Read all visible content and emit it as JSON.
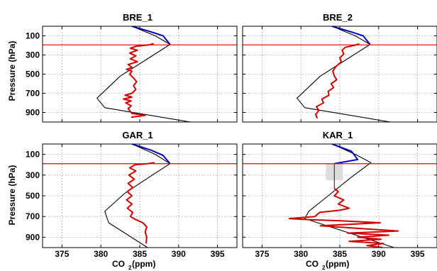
{
  "figure": {
    "ylabel": "Pressure (hPa)",
    "xlabel_main": "CO",
    "xlabel_sub": "2",
    "xlabel_unit": " (ppm)"
  },
  "chart_data": [
    {
      "type": "line",
      "title": "BRE_1",
      "xlim": [
        372.5,
        397.5
      ],
      "ylim": [
        1000,
        0
      ],
      "xticks": [
        375,
        380,
        385,
        390,
        395
      ],
      "yticks": [
        100,
        300,
        500,
        700,
        900
      ],
      "show_xticklabels": false,
      "show_yticklabels": true,
      "grid": true,
      "hline": {
        "y": 195,
        "color": "#e00000"
      },
      "series": [
        {
          "role": "model_envelope",
          "color": "#000000",
          "points": [
            [
              384,
              0
            ],
            [
              387,
              100
            ],
            [
              388.9,
              190
            ],
            [
              386,
              340
            ],
            [
              382.5,
              520
            ],
            [
              379.5,
              750
            ],
            [
              380.5,
              850
            ],
            [
              391.5,
              1000
            ]
          ]
        },
        {
          "role": "model_upper",
          "color": "#0000c0",
          "points": [
            [
              384,
              0
            ],
            [
              386.5,
              60
            ],
            [
              388,
              100
            ],
            [
              388.9,
              190
            ]
          ]
        },
        {
          "role": "observed",
          "color": "#d00000",
          "points": [
            [
              386.8,
              180
            ],
            [
              386.2,
              195
            ],
            [
              384.5,
              210
            ],
            [
              383.8,
              230
            ],
            [
              384.7,
              250
            ],
            [
              383.7,
              280
            ],
            [
              384.5,
              310
            ],
            [
              383.8,
              340
            ],
            [
              384.7,
              370
            ],
            [
              383.5,
              400
            ],
            [
              384,
              430
            ],
            [
              383.3,
              450
            ],
            [
              384,
              470
            ],
            [
              383.7,
              500
            ],
            [
              384.2,
              540
            ],
            [
              384.6,
              580
            ],
            [
              384.2,
              620
            ],
            [
              384.5,
              660
            ],
            [
              384,
              700
            ],
            [
              383.1,
              720
            ],
            [
              384,
              740
            ],
            [
              382.9,
              760
            ],
            [
              383.9,
              780
            ],
            [
              383.2,
              800
            ],
            [
              383.9,
              830
            ],
            [
              383.5,
              860
            ],
            [
              383.8,
              890
            ],
            [
              384,
              910
            ],
            [
              385.7,
              930
            ],
            [
              383.9,
              950
            ]
          ]
        }
      ]
    },
    {
      "type": "line",
      "title": "BRE_2",
      "xlim": [
        372.5,
        397.5
      ],
      "ylim": [
        1000,
        0
      ],
      "xticks": [
        375,
        380,
        385,
        390,
        395
      ],
      "yticks": [
        100,
        300,
        500,
        700,
        900
      ],
      "show_xticklabels": false,
      "show_yticklabels": false,
      "grid": true,
      "hline": {
        "y": 195,
        "color": "#e00000"
      },
      "series": [
        {
          "role": "model_envelope",
          "color": "#000000",
          "points": [
            [
              384,
              0
            ],
            [
              387,
              100
            ],
            [
              388.9,
              190
            ],
            [
              386,
              340
            ],
            [
              382.5,
              520
            ],
            [
              379.5,
              750
            ],
            [
              380.5,
              850
            ],
            [
              391.5,
              1000
            ]
          ]
        },
        {
          "role": "model_upper",
          "color": "#0000c0",
          "points": [
            [
              384,
              0
            ],
            [
              386.5,
              60
            ],
            [
              388,
              100
            ],
            [
              388.9,
              190
            ]
          ]
        },
        {
          "role": "observed",
          "color": "#d00000",
          "points": [
            [
              387.5,
              185
            ],
            [
              386.8,
              200
            ],
            [
              385.7,
              220
            ],
            [
              385.3,
              250
            ],
            [
              385.5,
              290
            ],
            [
              385,
              330
            ],
            [
              385.2,
              370
            ],
            [
              384.5,
              420
            ],
            [
              384.1,
              470
            ],
            [
              384.3,
              520
            ],
            [
              384.6,
              560
            ],
            [
              383.9,
              600
            ],
            [
              384.2,
              640
            ],
            [
              383.5,
              680
            ],
            [
              383.6,
              720
            ],
            [
              382.7,
              760
            ],
            [
              382.9,
              800
            ],
            [
              382,
              840
            ],
            [
              382.3,
              880
            ],
            [
              381.9,
              920
            ],
            [
              382.1,
              960
            ]
          ]
        }
      ]
    },
    {
      "type": "line",
      "title": "GAR_1",
      "xlim": [
        372.5,
        397.5
      ],
      "ylim": [
        1000,
        0
      ],
      "xticks": [
        375,
        380,
        385,
        390,
        395
      ],
      "yticks": [
        100,
        300,
        500,
        700,
        900
      ],
      "show_xticklabels": true,
      "show_yticklabels": true,
      "grid": true,
      "hline": {
        "y": 190,
        "color": "#e00000"
      },
      "series": [
        {
          "role": "model_envelope",
          "color": "#000000",
          "points": [
            [
              384,
              0
            ],
            [
              387,
              100
            ],
            [
              388.9,
              190
            ],
            [
              386,
              330
            ],
            [
              383,
              480
            ],
            [
              380.5,
              650
            ],
            [
              381,
              760
            ],
            [
              386,
              1000
            ]
          ]
        },
        {
          "role": "model_upper",
          "color": "#0000c0",
          "points": [
            [
              384,
              0
            ],
            [
              386.5,
              60
            ],
            [
              388,
              110
            ],
            [
              388.9,
              190
            ]
          ]
        },
        {
          "role": "observed",
          "color": "#d00000",
          "points": [
            [
              386.9,
              180
            ],
            [
              386,
              190
            ],
            [
              384.4,
              200
            ],
            [
              383.7,
              230
            ],
            [
              384.5,
              260
            ],
            [
              383.6,
              300
            ],
            [
              384.3,
              340
            ],
            [
              383.5,
              380
            ],
            [
              384.1,
              420
            ],
            [
              383.4,
              460
            ],
            [
              384,
              500
            ],
            [
              383.3,
              540
            ],
            [
              384,
              580
            ],
            [
              383.4,
              620
            ],
            [
              384.1,
              660
            ],
            [
              383.8,
              700
            ],
            [
              384.5,
              730
            ],
            [
              385.4,
              760
            ],
            [
              385.9,
              800
            ],
            [
              385.7,
              850
            ],
            [
              385.9,
              900
            ],
            [
              385.8,
              960
            ]
          ]
        }
      ]
    },
    {
      "type": "line",
      "title": "KAR_1",
      "xlim": [
        372.5,
        397.5
      ],
      "ylim": [
        1000,
        0
      ],
      "xticks": [
        375,
        380,
        385,
        390,
        395
      ],
      "yticks": [
        100,
        300,
        500,
        700,
        900
      ],
      "show_xticklabels": true,
      "show_yticklabels": false,
      "grid": true,
      "hline": {
        "y": 190,
        "color": "#e00000"
      },
      "shaded_band": {
        "x": [
          383.2,
          385.4
        ],
        "y": [
          190,
          350
        ],
        "color": "#dddddd"
      },
      "series": [
        {
          "role": "model_envelope",
          "color": "#000000",
          "points": [
            [
              384,
              0
            ],
            [
              387,
              100
            ],
            [
              389,
              180
            ],
            [
              386.5,
              320
            ],
            [
              383.5,
              500
            ],
            [
              381,
              650
            ],
            [
              380.5,
              720
            ],
            [
              392,
              1000
            ]
          ]
        },
        {
          "role": "model_upper",
          "color": "#0000c0",
          "points": [
            [
              384,
              0
            ],
            [
              386.5,
              70
            ],
            [
              387.3,
              150
            ],
            [
              384.3,
              190
            ]
          ]
        },
        {
          "role": "observed_upper",
          "color": "#333333",
          "points": [
            [
              384.3,
              190
            ],
            [
              384.3,
              430
            ]
          ]
        },
        {
          "role": "observed",
          "color": "#d00000",
          "points": [
            [
              384.3,
              430
            ],
            [
              384.8,
              460
            ],
            [
              384.3,
              500
            ],
            [
              385.5,
              540
            ],
            [
              384.8,
              580
            ],
            [
              386.2,
              620
            ],
            [
              385,
              640
            ],
            [
              382.4,
              660
            ],
            [
              381.8,
              700
            ],
            [
              378.5,
              720
            ],
            [
              381,
              730
            ],
            [
              384.6,
              740
            ],
            [
              390.2,
              760
            ],
            [
              382.5,
              790
            ],
            [
              386.5,
              810
            ],
            [
              392.5,
              840
            ],
            [
              386,
              860
            ],
            [
              391.3,
              880
            ],
            [
              387.3,
              900
            ],
            [
              390.3,
              920
            ],
            [
              386.2,
              940
            ],
            [
              390.6,
              960
            ],
            [
              388.5,
              980
            ],
            [
              390.5,
              1000
            ]
          ]
        }
      ]
    }
  ]
}
